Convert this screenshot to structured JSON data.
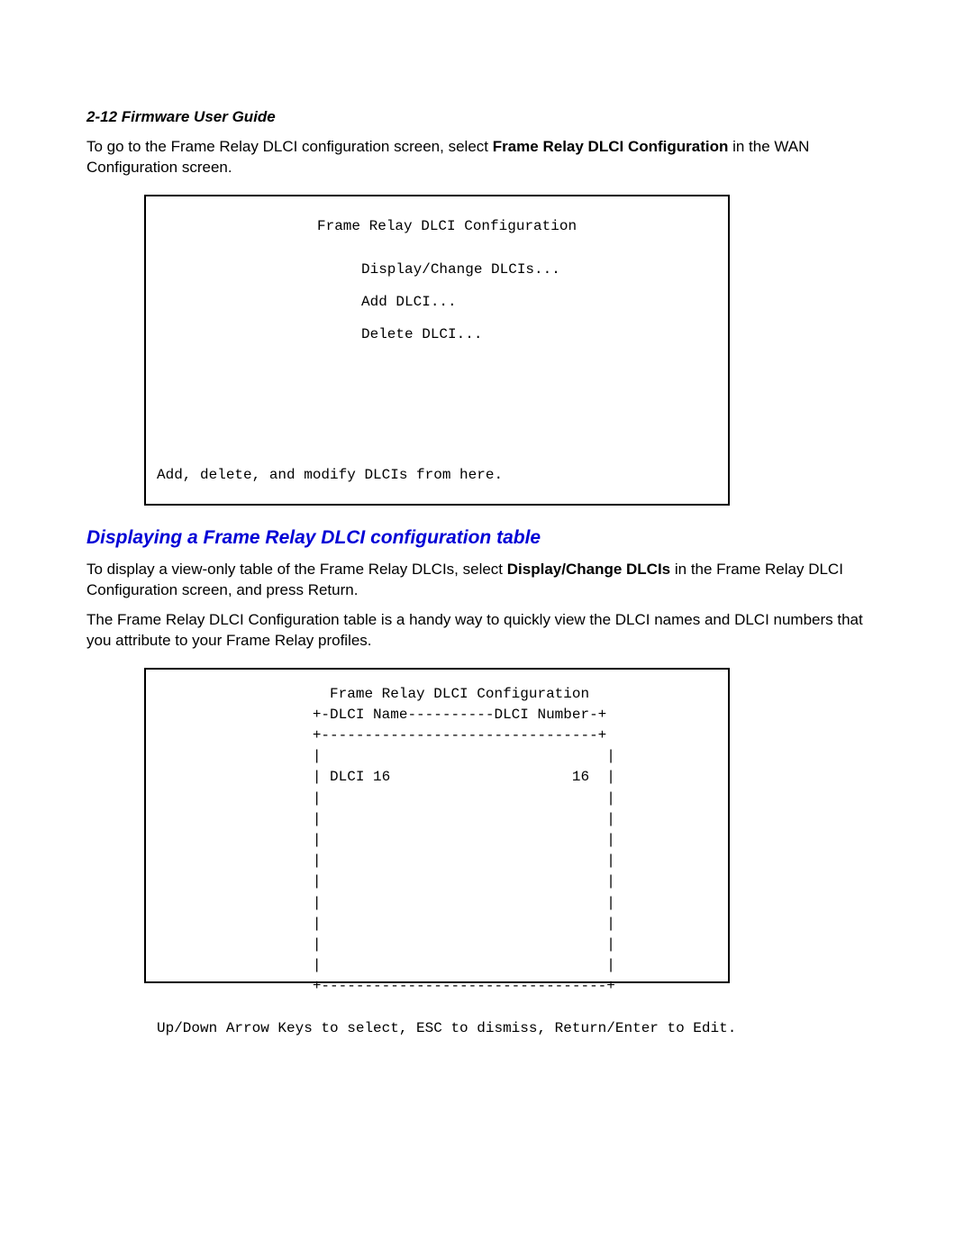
{
  "page_header": "2-12  Firmware User Guide",
  "intro": {
    "pre": "To go to the Frame Relay DLCI configuration screen, select ",
    "bold": "Frame Relay DLCI Configuration",
    "post": " in the WAN Configuration screen."
  },
  "terminal1": {
    "title": "Frame Relay DLCI Configuration",
    "opt1": "Display/Change DLCIs...",
    "opt2": "Add DLCI...",
    "opt3": "Delete DLCI...",
    "status": "Add, delete, and modify DLCIs from here."
  },
  "section_heading": "Displaying a Frame Relay DLCI configuration table",
  "para1": {
    "pre": "To display a view-only table of the Frame Relay DLCIs, select ",
    "bold": "Display/Change DLCIs",
    "post": " in the Frame Relay DLCI Configuration screen, and press Return."
  },
  "para2": "The Frame Relay DLCI Configuration table is a handy way to quickly view the DLCI names and DLCI numbers that you attribute to your Frame Relay profiles.",
  "terminal2": {
    "block": "                    Frame Relay DLCI Configuration\n                  +-DLCI Name----------DLCI Number-+\n                  +--------------------------------+\n                  |                                 |\n                  | DLCI 16                     16  |\n                  |                                 |\n                  |                                 |\n                  |                                 |\n                  |                                 |\n                  |                                 |\n                  |                                 |\n                  |                                 |\n                  |                                 |\n                  |                                 |\n                  +---------------------------------+\n\nUp/Down Arrow Keys to select, ESC to dismiss, Return/Enter to Edit."
  },
  "colors": {
    "heading_blue": "#0000d6",
    "text_black": "#000000",
    "background": "#ffffff",
    "border": "#000000"
  },
  "fonts": {
    "body": {
      "family": "Arial",
      "size_pt": 13
    },
    "header": {
      "family": "Arial",
      "size_pt": 13,
      "weight": "bold",
      "style": "italic"
    },
    "heading": {
      "family": "Arial",
      "size_pt": 16,
      "weight": "bold",
      "style": "italic"
    },
    "terminal": {
      "family": "Courier New",
      "size_pt": 12
    }
  }
}
